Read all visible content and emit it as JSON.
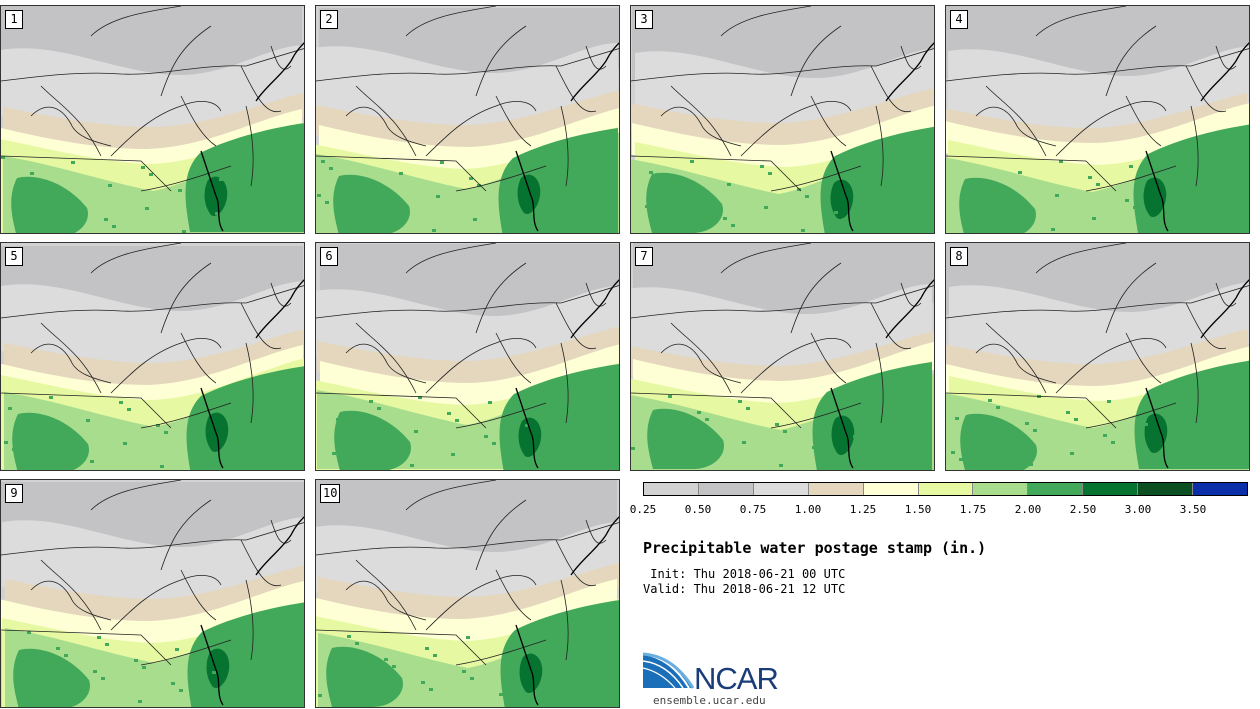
{
  "panels": [
    {
      "label": "1"
    },
    {
      "label": "2"
    },
    {
      "label": "3"
    },
    {
      "label": "4"
    },
    {
      "label": "5"
    },
    {
      "label": "6"
    },
    {
      "label": "7"
    },
    {
      "label": "8"
    },
    {
      "label": "9"
    },
    {
      "label": "10"
    }
  ],
  "colorbar": {
    "ticks": [
      "0.25",
      "0.50",
      "0.75",
      "1.00",
      "1.25",
      "1.50",
      "1.75",
      "2.00",
      "2.50",
      "3.00",
      "3.50"
    ],
    "colors": [
      "#d2d2d2",
      "#c3c3c6",
      "#dcdcdc",
      "#e4d7bd",
      "#ffffd6",
      "#e6f9a2",
      "#a8dd8d",
      "#42a85a",
      "#077330",
      "#0b4f22",
      "#0a2fa8"
    ]
  },
  "title": "Precipitable water postage stamp (in.)",
  "init_line": " Init: Thu 2018-06-21 00 UTC",
  "valid_line": "Valid: Thu 2018-06-21 12 UTC",
  "logo": {
    "name": "NCAR",
    "site": "ensemble.ucar.edu"
  }
}
